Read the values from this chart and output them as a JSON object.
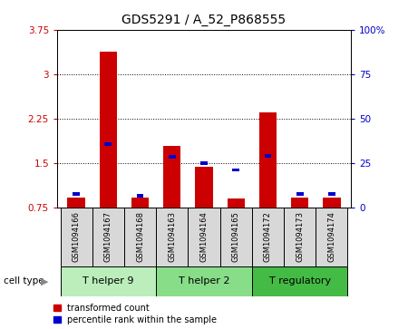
{
  "title": "GDS5291 / A_52_P868555",
  "categories": [
    "GSM1094166",
    "GSM1094167",
    "GSM1094168",
    "GSM1094163",
    "GSM1094164",
    "GSM1094165",
    "GSM1094172",
    "GSM1094173",
    "GSM1094174"
  ],
  "red_values": [
    0.92,
    3.38,
    0.92,
    1.78,
    1.43,
    0.9,
    2.35,
    0.92,
    0.92
  ],
  "blue_values": [
    0.97,
    1.82,
    0.94,
    1.6,
    1.49,
    1.38,
    1.62,
    0.97,
    0.97
  ],
  "ylim_left": [
    0.75,
    3.75
  ],
  "ylim_right": [
    0,
    100
  ],
  "yticks_left": [
    0.75,
    1.5,
    2.25,
    3.0,
    3.75
  ],
  "ytick_labels_left": [
    "0.75",
    "1.5",
    "2.25",
    "3",
    "3.75"
  ],
  "yticks_right": [
    0,
    25,
    50,
    75,
    100
  ],
  "ytick_labels_right": [
    "0",
    "25",
    "50",
    "75",
    "100%"
  ],
  "groups": [
    {
      "label": "T helper 9",
      "start": 0,
      "end": 3,
      "color": "#bbeebb"
    },
    {
      "label": "T helper 2",
      "start": 3,
      "end": 6,
      "color": "#88dd88"
    },
    {
      "label": "T regulatory",
      "start": 6,
      "end": 9,
      "color": "#44bb44"
    }
  ],
  "cell_type_label": "cell type",
  "bar_bottom": 0.75,
  "bar_color_red": "#cc0000",
  "bar_color_blue": "#0000cc",
  "bg_color": "#d8d8d8",
  "legend_items": [
    "transformed count",
    "percentile rank within the sample"
  ]
}
